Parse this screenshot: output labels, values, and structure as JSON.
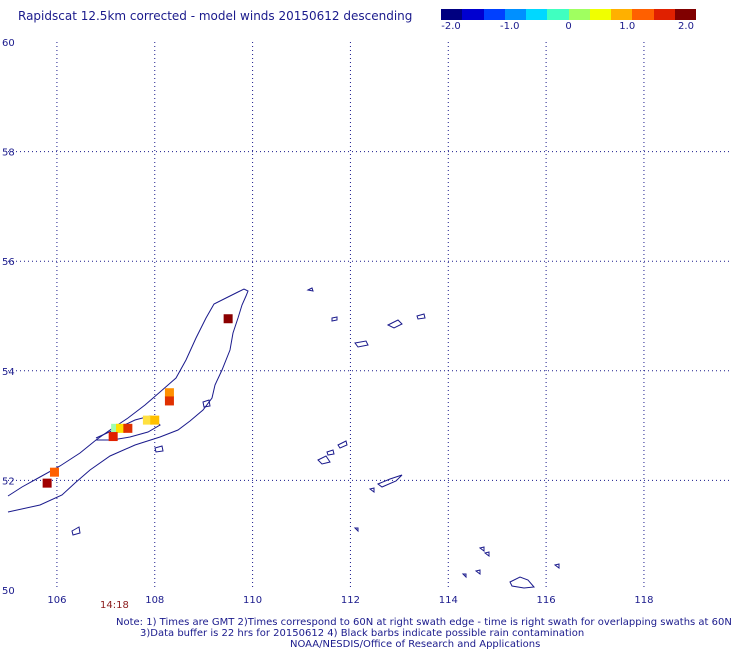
{
  "title": "Rapidscat 12.5km corrected - model winds 20150612 descending",
  "colorbar": {
    "tick_labels": [
      "-2.0",
      "-1.0",
      "0",
      "1.0",
      "2.0"
    ],
    "colors": [
      "#000080",
      "#0000d0",
      "#0040ff",
      "#0090ff",
      "#00d8ff",
      "#40ffc0",
      "#a0ff60",
      "#f0ff00",
      "#ffb000",
      "#ff6000",
      "#e02000",
      "#800000"
    ]
  },
  "map": {
    "lat_labels": [
      "60",
      "58",
      "56",
      "54",
      "52",
      "50"
    ],
    "lon_labels": [
      "106",
      "108",
      "110",
      "112",
      "114",
      "116",
      "118"
    ],
    "time_label": "14:18",
    "wind_cells": [
      {
        "lon": 109.5,
        "lat": 54.95,
        "color": "#8b0000"
      },
      {
        "lon": 108.3,
        "lat": 53.6,
        "color": "#ff9000"
      },
      {
        "lon": 108.3,
        "lat": 53.45,
        "color": "#e03000"
      },
      {
        "lon": 107.85,
        "lat": 53.1,
        "color": "#ffe040"
      },
      {
        "lon": 108.0,
        "lat": 53.1,
        "color": "#ffc000"
      },
      {
        "lon": 107.2,
        "lat": 52.95,
        "color": "#a0ffb0"
      },
      {
        "lon": 107.3,
        "lat": 52.95,
        "color": "#ffe000"
      },
      {
        "lon": 107.45,
        "lat": 52.95,
        "color": "#e03000"
      },
      {
        "lon": 107.15,
        "lat": 52.8,
        "color": "#e02000"
      },
      {
        "lon": 105.95,
        "lat": 52.15,
        "color": "#ff6000"
      },
      {
        "lon": 105.8,
        "lat": 51.95,
        "color": "#a00000"
      }
    ]
  },
  "footer": {
    "line1": "Note: 1) Times are GMT 2)Times correspond to 60N at right swath edge - time is right swath for overlapping swaths at 60N",
    "line2": "3)Data buffer is 22 hrs for 20150612 4) Black barbs indicate possible rain contamination",
    "line3": "NOAA/NESDIS/Office of Research and Applications"
  }
}
